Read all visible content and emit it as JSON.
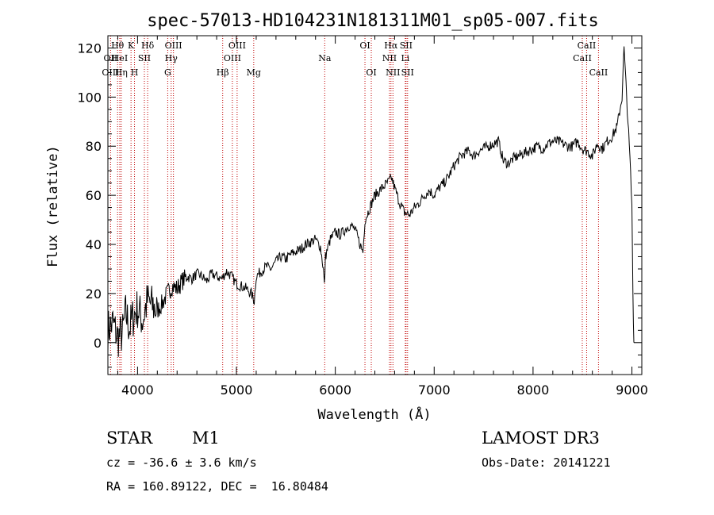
{
  "chart_data": {
    "type": "line",
    "title": "spec-57013-HD104231N181311M01_sp05-007.fits",
    "xlabel": "Wavelength (Å)",
    "ylabel": "Flux (relative)",
    "xlim": [
      3700,
      9100
    ],
    "ylim": [
      -13,
      125
    ],
    "xticks": [
      4000,
      5000,
      6000,
      7000,
      8000,
      9000
    ],
    "yticks": [
      0,
      20,
      40,
      60,
      80,
      100,
      120
    ],
    "grid": false,
    "series": [
      {
        "x": [
          3700,
          3750,
          3800,
          3850,
          3880,
          3920,
          3950,
          4000,
          4050,
          4100,
          4150,
          4200,
          4250,
          4300,
          4350,
          4400,
          4450,
          4500,
          4550,
          4600,
          4650,
          4700,
          4750,
          4800,
          4850,
          4900,
          4950,
          5000,
          5050,
          5100,
          5150,
          5180,
          5200,
          5250,
          5300,
          5350,
          5400,
          5450,
          5500,
          5550,
          5600,
          5650,
          5700,
          5750,
          5800,
          5850,
          5880,
          5890,
          5900,
          5920,
          5950,
          6000,
          6050,
          6100,
          6150,
          6200,
          6250,
          6280,
          6300,
          6350,
          6400,
          6450,
          6500,
          6550,
          6570,
          6600,
          6650,
          6700,
          6750,
          6800,
          6850,
          6900,
          6950,
          7000,
          7050,
          7100,
          7150,
          7200,
          7250,
          7300,
          7350,
          7400,
          7450,
          7500,
          7550,
          7600,
          7650,
          7700,
          7750,
          7800,
          7850,
          7900,
          7950,
          8000,
          8050,
          8100,
          8150,
          8200,
          8250,
          8300,
          8350,
          8400,
          8450,
          8500,
          8550,
          8600,
          8650,
          8700,
          8750,
          8800,
          8850,
          8900,
          8920,
          8940,
          8960,
          8980,
          9000,
          9010,
          9020
        ],
        "values": [
          5,
          8,
          2,
          4,
          12,
          6,
          10,
          14,
          9,
          17,
          15,
          13,
          16,
          20,
          23,
          22,
          25,
          27,
          26,
          28,
          27,
          25,
          28,
          27,
          26,
          29,
          27,
          24,
          23,
          22,
          20,
          17,
          27,
          29,
          31,
          30,
          33,
          35,
          34,
          36,
          37,
          38,
          40,
          41,
          42,
          39,
          30,
          23,
          35,
          38,
          42,
          45,
          44,
          46,
          48,
          46,
          40,
          37,
          50,
          55,
          60,
          62,
          64,
          66,
          67,
          63,
          57,
          53,
          52,
          55,
          57,
          60,
          62,
          60,
          63,
          65,
          68,
          72,
          75,
          77,
          78,
          76,
          78,
          79,
          80,
          81,
          82,
          74,
          73,
          75,
          76,
          77,
          78,
          79,
          80,
          79,
          81,
          82,
          82,
          81,
          80,
          80,
          82,
          79,
          78,
          76,
          81,
          79,
          82,
          84,
          88,
          100,
          120,
          105,
          90,
          75,
          55,
          20,
          0
        ]
      }
    ],
    "lines": [
      {
        "name": "OII",
        "x": 3727,
        "row": 2
      },
      {
        "name": "OIII",
        "x": 3727,
        "row": 3
      },
      {
        "name": "Hθ",
        "x": 3798,
        "row": 1
      },
      {
        "name": "HeI",
        "x": 3820,
        "row": 2
      },
      {
        "name": "Hη",
        "x": 3835,
        "row": 3
      },
      {
        "name": "K",
        "x": 3934,
        "row": 1
      },
      {
        "name": "SII",
        "x": 4069,
        "row": 2
      },
      {
        "name": "H",
        "x": 3969,
        "row": 3
      },
      {
        "name": "Hδ",
        "x": 4102,
        "row": 1
      },
      {
        "name": "OIII",
        "x": 4363,
        "row": 1
      },
      {
        "name": "Hγ",
        "x": 4340,
        "row": 2
      },
      {
        "name": "G",
        "x": 4305,
        "row": 3
      },
      {
        "name": "Hβ",
        "x": 4861,
        "row": 3
      },
      {
        "name": "OIII",
        "x": 5007,
        "row": 1
      },
      {
        "name": "OIII",
        "x": 4959,
        "row": 2
      },
      {
        "name": "Mg",
        "x": 5175,
        "row": 3
      },
      {
        "name": "Na",
        "x": 5893,
        "row": 2
      },
      {
        "name": "OI",
        "x": 6300,
        "row": 1
      },
      {
        "name": "OI",
        "x": 6364,
        "row": 3
      },
      {
        "name": "Hα",
        "x": 6563,
        "row": 1
      },
      {
        "name": "SII",
        "x": 6716,
        "row": 1
      },
      {
        "name": "NII",
        "x": 6548,
        "row": 2
      },
      {
        "name": "Li",
        "x": 6708,
        "row": 2
      },
      {
        "name": "NII",
        "x": 6583,
        "row": 3
      },
      {
        "name": "SII",
        "x": 6731,
        "row": 3
      },
      {
        "name": "CaII",
        "x": 8542,
        "row": 1
      },
      {
        "name": "CaII",
        "x": 8498,
        "row": 2
      },
      {
        "name": "CaII",
        "x": 8662,
        "row": 3
      }
    ]
  },
  "info": {
    "object_type": "STAR",
    "subclass": "M1",
    "survey": "LAMOST DR3",
    "cz": "cz = -36.6 ± 3.6 km/s",
    "obs_date": "Obs-Date: 20141221",
    "radec": "RA = 160.89122, DEC =  16.80484"
  },
  "colors": {
    "spectrum": "#000000",
    "line_marker": "#c00000"
  }
}
